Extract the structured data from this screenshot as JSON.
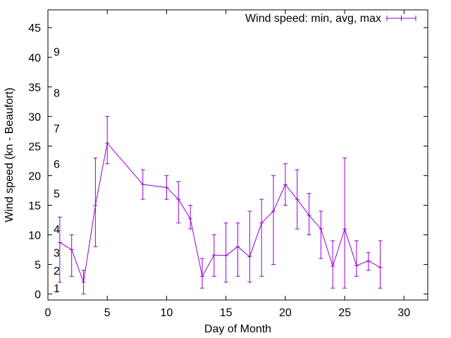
{
  "chart_data": {
    "type": "line",
    "xlabel": "Day of Month",
    "ylabel": "Wind speed (kn - Beaufort)",
    "xlim": [
      0,
      32
    ],
    "ylim": [
      -1,
      48
    ],
    "xticks": [
      0,
      5,
      10,
      15,
      20,
      25,
      30
    ],
    "yticks": [
      0,
      5,
      10,
      15,
      20,
      25,
      30,
      35,
      40,
      45
    ],
    "grid": false,
    "legend_position": "top-right",
    "line_color": "#9400d3",
    "beaufort_labels": [
      {
        "label": "1",
        "value": 1
      },
      {
        "label": "2",
        "value": 4
      },
      {
        "label": "3",
        "value": 7
      },
      {
        "label": "4",
        "value": 11
      },
      {
        "label": "5",
        "value": 17
      },
      {
        "label": "6",
        "value": 22
      },
      {
        "label": "7",
        "value": 28
      },
      {
        "label": "8",
        "value": 34
      },
      {
        "label": "9",
        "value": 41
      }
    ],
    "series": [
      {
        "name": "Wind speed: min, avg, max",
        "x": [
          1,
          2,
          3,
          4,
          5,
          8,
          10,
          11,
          12,
          13,
          14,
          15,
          16,
          17,
          18,
          19,
          20,
          21,
          22,
          23,
          24,
          25,
          26,
          27,
          28
        ],
        "avg": [
          8.7,
          7.5,
          2,
          15,
          25.5,
          18.5,
          18,
          16,
          12.7,
          3,
          6.6,
          6.5,
          8,
          6.3,
          12,
          14,
          18.5,
          16,
          13.3,
          11,
          4.7,
          11,
          4.8,
          5.6,
          4.5
        ],
        "min": [
          2,
          3,
          0,
          8,
          22,
          16,
          16,
          12,
          11,
          1,
          3,
          2,
          3,
          2,
          3,
          5,
          15,
          11,
          10,
          6,
          1,
          1,
          3,
          4,
          1
        ],
        "max": [
          13,
          10,
          4,
          23,
          30,
          21,
          20,
          19,
          15,
          6,
          10,
          12,
          12,
          14,
          16,
          20,
          22,
          21,
          17,
          14,
          9,
          23,
          9,
          7,
          9
        ]
      }
    ]
  }
}
